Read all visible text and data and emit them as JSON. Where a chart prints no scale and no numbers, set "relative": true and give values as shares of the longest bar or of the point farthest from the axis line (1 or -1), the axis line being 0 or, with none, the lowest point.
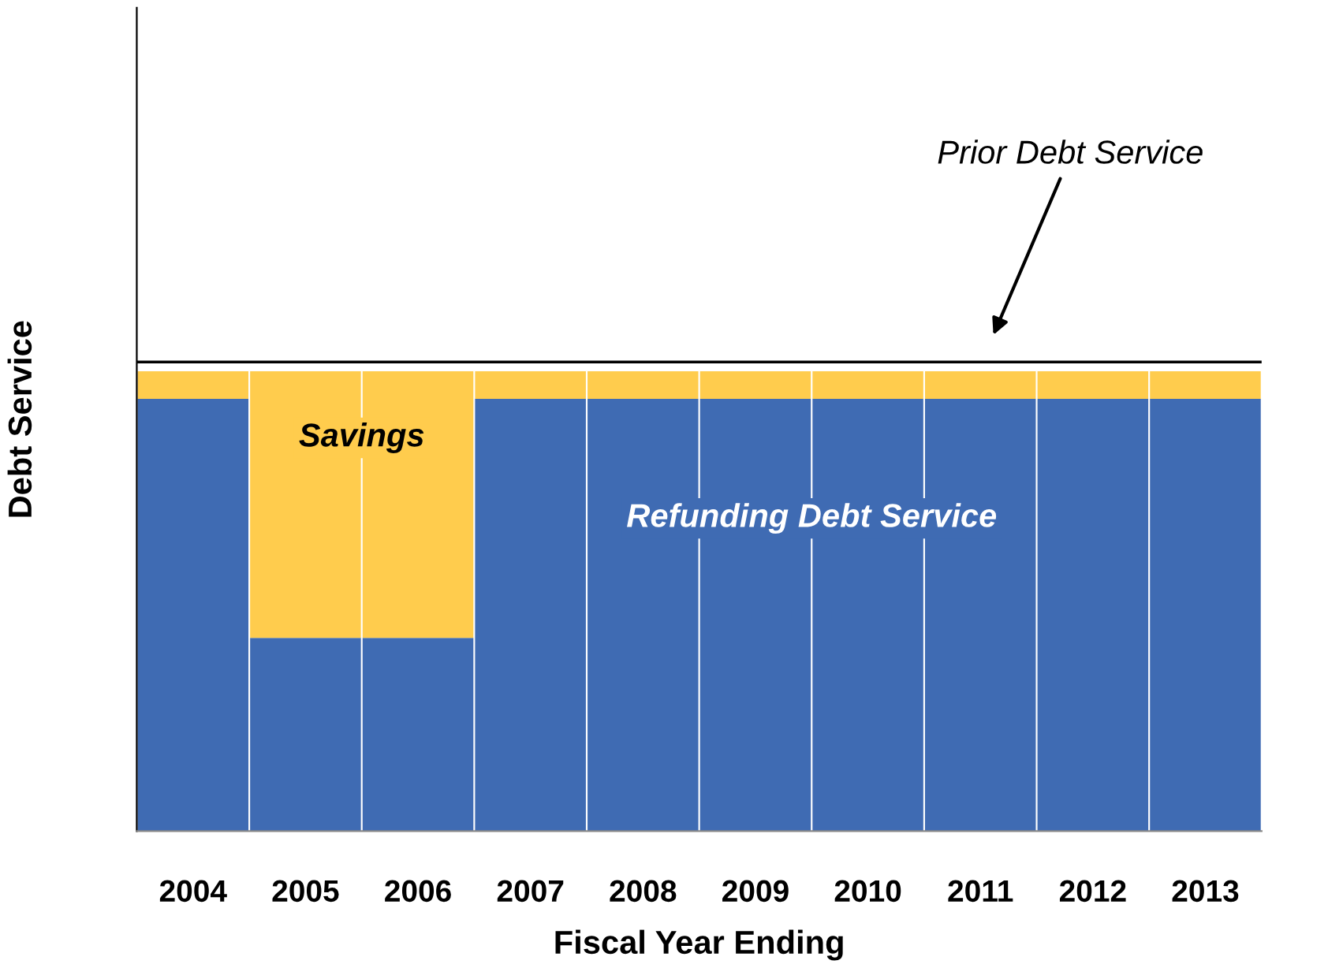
{
  "chart_data": {
    "type": "bar",
    "stacked": true,
    "relative": true,
    "xlabel": "Fiscal Year Ending",
    "ylabel": "Debt Service",
    "categories": [
      "2004",
      "2005",
      "2006",
      "2007",
      "2008",
      "2009",
      "2010",
      "2011",
      "2012",
      "2013"
    ],
    "series": [
      {
        "name": "Refunding Debt Service",
        "color": "#3f6bb3",
        "values": [
          0.94,
          0.42,
          0.42,
          0.94,
          0.94,
          0.94,
          0.94,
          0.94,
          0.94,
          0.94
        ]
      },
      {
        "name": "Savings",
        "color": "#ffcc4d",
        "values": [
          0.06,
          0.58,
          0.58,
          0.06,
          0.06,
          0.06,
          0.06,
          0.06,
          0.06,
          0.06
        ]
      }
    ],
    "ref_lines": [
      {
        "axis": "y",
        "value": 1.02,
        "label": "Prior Debt Service",
        "color": "#000000"
      }
    ],
    "grid": false,
    "legend": false
  }
}
